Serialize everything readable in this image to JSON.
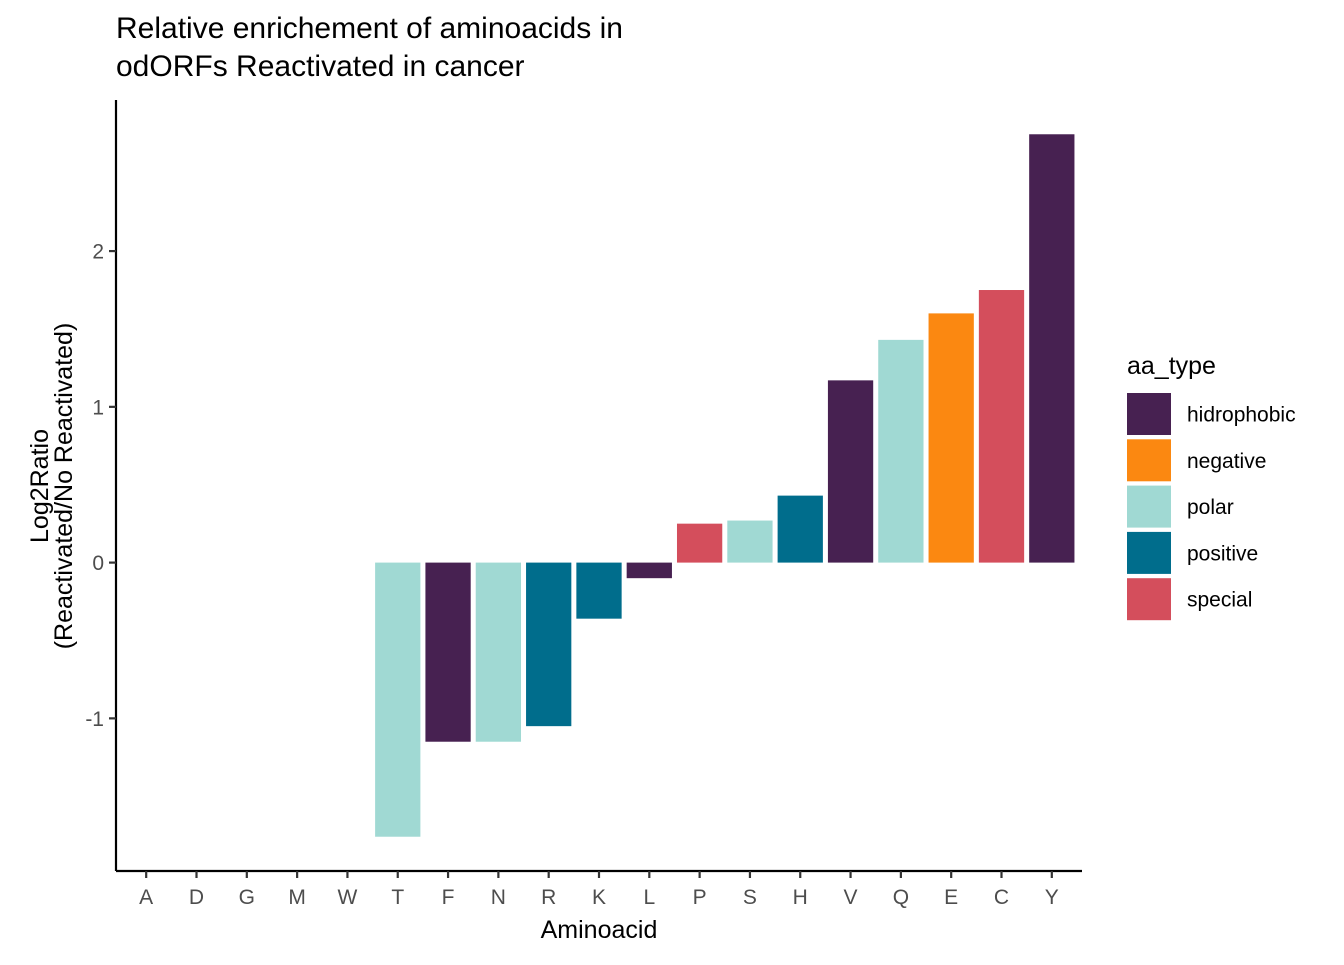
{
  "chart_data": {
    "type": "bar",
    "title_lines": [
      "Relative enrichement of aminoacids in",
      "odORFs Reactivated in cancer"
    ],
    "xlabel": "Aminoacid",
    "ylabel_lines": [
      "Log2Ratio",
      "(Reactivated/No Reactivated)"
    ],
    "categories": [
      "A",
      "D",
      "G",
      "M",
      "W",
      "T",
      "F",
      "N",
      "R",
      "K",
      "L",
      "P",
      "S",
      "H",
      "V",
      "Q",
      "E",
      "C",
      "Y"
    ],
    "values": [
      null,
      null,
      null,
      null,
      null,
      -1.76,
      -1.15,
      -1.15,
      -1.05,
      -0.36,
      -0.1,
      0.25,
      0.27,
      0.43,
      1.17,
      1.43,
      1.6,
      1.75,
      2.75
    ],
    "aa_type": [
      null,
      null,
      null,
      null,
      null,
      "polar",
      "hidrophobic",
      "polar",
      "positive",
      "positive",
      "hidrophobic",
      "special",
      "polar",
      "positive",
      "hidrophobic",
      "polar",
      "negative",
      "special",
      "hidrophobic"
    ],
    "ylim": [
      -1.98,
      2.97
    ],
    "yticks": [
      -1,
      0,
      1,
      2
    ],
    "ytick_labels": [
      "-1",
      "0",
      "1",
      "2"
    ],
    "grid": false,
    "legend": {
      "title": "aa_type",
      "placement": "right",
      "entries": [
        {
          "key": "hidrophobic",
          "label": "hidrophobic",
          "color": "#472151"
        },
        {
          "key": "negative",
          "label": "negative",
          "color": "#fb8811"
        },
        {
          "key": "polar",
          "label": "polar",
          "color": "#a0d9d3"
        },
        {
          "key": "positive",
          "label": "positive",
          "color": "#006d8c"
        },
        {
          "key": "special",
          "label": "special",
          "color": "#d44e5c"
        }
      ]
    }
  }
}
